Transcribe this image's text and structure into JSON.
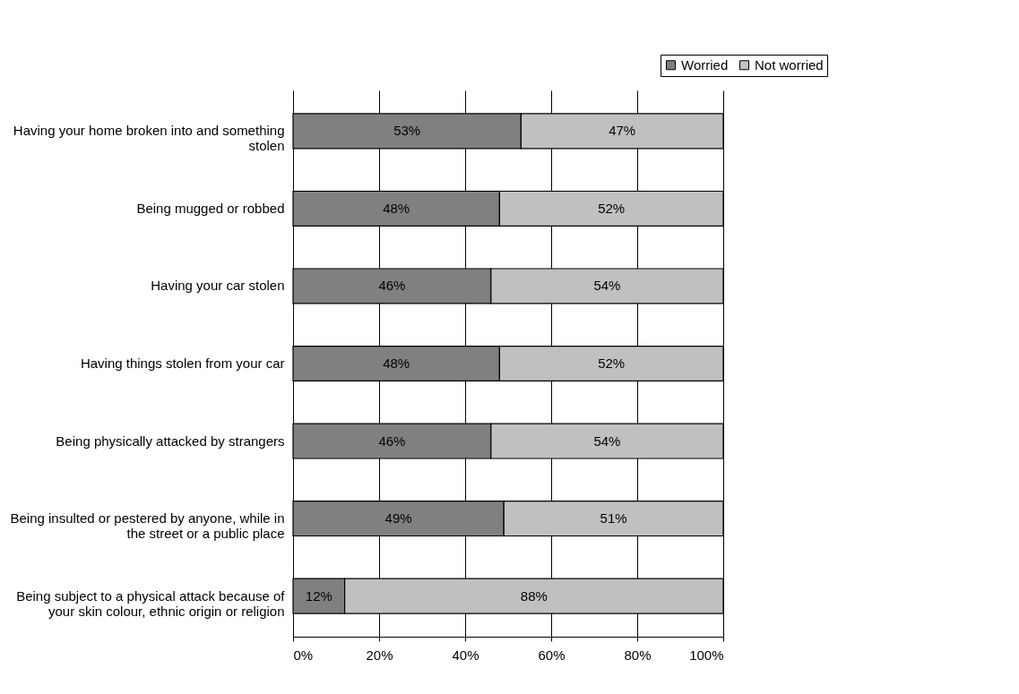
{
  "chart_data": {
    "type": "bar",
    "orientation": "horizontal",
    "stacked": true,
    "categories": [
      "Having your home broken into and something stolen",
      "Being mugged or robbed",
      "Having your car stolen",
      "Having things stolen from your car",
      "Being physically attacked by strangers",
      "Being insulted or pestered by anyone, while in the street or a public place",
      "Being subject to a physical attack because of your skin colour, ethnic origin or religion"
    ],
    "series": [
      {
        "name": "Worried",
        "color": "#808080",
        "values": [
          53,
          48,
          46,
          48,
          46,
          49,
          12
        ],
        "value_labels": [
          "53%",
          "48%",
          "46%",
          "48%",
          "46%",
          "49%",
          "12%"
        ]
      },
      {
        "name": "Not worried",
        "color": "#c0c0c0",
        "values": [
          47,
          52,
          54,
          52,
          54,
          51,
          88
        ],
        "value_labels": [
          "47%",
          "52%",
          "54%",
          "52%",
          "54%",
          "51%",
          "88%"
        ]
      }
    ],
    "xlim": [
      0,
      100
    ],
    "xticks": [
      {
        "value": 0,
        "label": "0%"
      },
      {
        "value": 20,
        "label": "20%"
      },
      {
        "value": 40,
        "label": "40%"
      },
      {
        "value": 60,
        "label": "60%"
      },
      {
        "value": 80,
        "label": "80%"
      },
      {
        "value": 100,
        "label": "100%"
      }
    ],
    "grid": "x",
    "legend": "top right"
  }
}
